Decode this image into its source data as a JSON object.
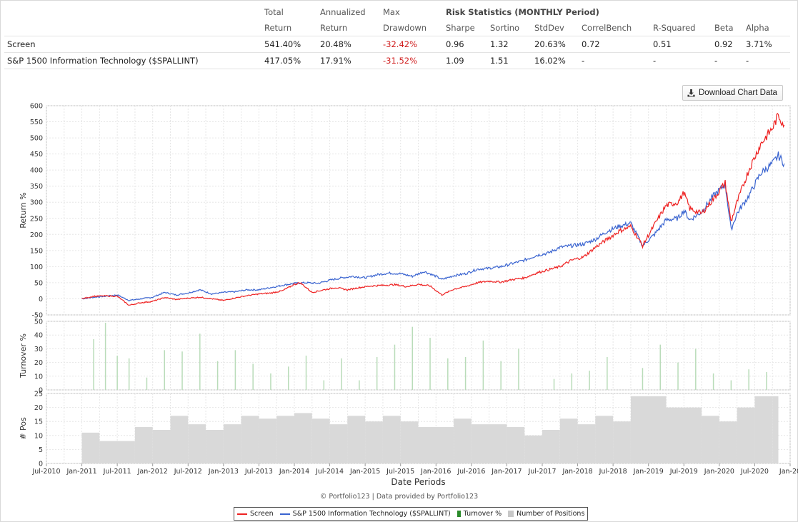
{
  "stats_table": {
    "header_row1": [
      "",
      "Total",
      "Annualized",
      "Max",
      "Risk Statistics (MONTHLY Period)"
    ],
    "header_row2": [
      "",
      "Return",
      "Return",
      "Drawdown",
      "Sharpe",
      "Sortino",
      "StdDev",
      "CorrelBench",
      "R-Squared",
      "Beta",
      "Alpha"
    ],
    "rows": [
      {
        "name": "Screen",
        "total": "541.40%",
        "annualized": "20.48%",
        "drawdown": "-32.42%",
        "sharpe": "0.96",
        "sortino": "1.32",
        "stddev": "20.63%",
        "correl": "0.72",
        "rsq": "0.51",
        "beta": "0.92",
        "alpha": "3.71%"
      },
      {
        "name": "S&P 1500 Information Technology ($SPALLINT)",
        "total": "417.05%",
        "annualized": "17.91%",
        "drawdown": "-31.52%",
        "sharpe": "1.09",
        "sortino": "1.51",
        "stddev": "16.02%",
        "correl": "-",
        "rsq": "-",
        "beta": "-",
        "alpha": "-"
      }
    ]
  },
  "download_button": {
    "label": "Download Chart Data",
    "icon": "download-icon"
  },
  "footer": "© Portfolio123 | Data provided by Portfolio123",
  "colors": {
    "screen": "#ee2222",
    "benchmark": "#3a64d0",
    "turnover": "#5aaa5a",
    "positions": "#d9d9d9"
  },
  "chart_data": [
    {
      "type": "line",
      "ylabel": "Return %",
      "ylim": [
        -50,
        600
      ],
      "yticks": [
        -50,
        0,
        50,
        100,
        150,
        200,
        250,
        300,
        350,
        400,
        450,
        500,
        550,
        600
      ],
      "x_start": "2010-07",
      "x_end": "2021-01",
      "grid": true,
      "series": [
        {
          "name": "Screen",
          "color": "#ee2222",
          "points": [
            [
              "2011-01",
              0
            ],
            [
              "2011-03",
              8
            ],
            [
              "2011-05",
              9
            ],
            [
              "2011-07",
              8
            ],
            [
              "2011-09",
              -20
            ],
            [
              "2011-11",
              -12
            ],
            [
              "2012-01",
              -8
            ],
            [
              "2012-03",
              4
            ],
            [
              "2012-05",
              -2
            ],
            [
              "2012-07",
              2
            ],
            [
              "2012-09",
              5
            ],
            [
              "2012-11",
              0
            ],
            [
              "2013-01",
              -5
            ],
            [
              "2013-03",
              3
            ],
            [
              "2013-05",
              10
            ],
            [
              "2013-07",
              15
            ],
            [
              "2013-09",
              18
            ],
            [
              "2013-11",
              25
            ],
            [
              "2014-01",
              45
            ],
            [
              "2014-02",
              50
            ],
            [
              "2014-04",
              20
            ],
            [
              "2014-06",
              28
            ],
            [
              "2014-08",
              35
            ],
            [
              "2014-10",
              28
            ],
            [
              "2014-12",
              35
            ],
            [
              "2015-02",
              40
            ],
            [
              "2015-04",
              42
            ],
            [
              "2015-06",
              44
            ],
            [
              "2015-08",
              38
            ],
            [
              "2015-10",
              45
            ],
            [
              "2015-12",
              40
            ],
            [
              "2016-02",
              12
            ],
            [
              "2016-04",
              30
            ],
            [
              "2016-06",
              38
            ],
            [
              "2016-08",
              50
            ],
            [
              "2016-10",
              55
            ],
            [
              "2016-12",
              52
            ],
            [
              "2017-02",
              60
            ],
            [
              "2017-04",
              65
            ],
            [
              "2017-06",
              80
            ],
            [
              "2017-08",
              90
            ],
            [
              "2017-10",
              100
            ],
            [
              "2017-12",
              120
            ],
            [
              "2018-02",
              130
            ],
            [
              "2018-04",
              160
            ],
            [
              "2018-06",
              185
            ],
            [
              "2018-08",
              210
            ],
            [
              "2018-10",
              225
            ],
            [
              "2018-12",
              165
            ],
            [
              "2019-02",
              230
            ],
            [
              "2019-04",
              290
            ],
            [
              "2019-06",
              300
            ],
            [
              "2019-07",
              330
            ],
            [
              "2019-08",
              280
            ],
            [
              "2019-10",
              265
            ],
            [
              "2019-12",
              310
            ],
            [
              "2020-02",
              360
            ],
            [
              "2020-03",
              240
            ],
            [
              "2020-04",
              300
            ],
            [
              "2020-06",
              400
            ],
            [
              "2020-08",
              480
            ],
            [
              "2020-10",
              530
            ],
            [
              "2020-11",
              570
            ],
            [
              "2020-12",
              540
            ]
          ]
        },
        {
          "name": "S&P 1500 Information Technology ($SPALLINT)",
          "color": "#3a64d0",
          "points": [
            [
              "2011-01",
              0
            ],
            [
              "2011-03",
              5
            ],
            [
              "2011-05",
              8
            ],
            [
              "2011-07",
              12
            ],
            [
              "2011-09",
              -5
            ],
            [
              "2011-11",
              0
            ],
            [
              "2012-01",
              5
            ],
            [
              "2012-03",
              20
            ],
            [
              "2012-05",
              12
            ],
            [
              "2012-07",
              18
            ],
            [
              "2012-09",
              28
            ],
            [
              "2012-11",
              15
            ],
            [
              "2013-01",
              20
            ],
            [
              "2013-03",
              22
            ],
            [
              "2013-05",
              28
            ],
            [
              "2013-07",
              28
            ],
            [
              "2013-09",
              35
            ],
            [
              "2013-11",
              42
            ],
            [
              "2014-01",
              48
            ],
            [
              "2014-03",
              50
            ],
            [
              "2014-05",
              48
            ],
            [
              "2014-07",
              58
            ],
            [
              "2014-09",
              65
            ],
            [
              "2014-11",
              70
            ],
            [
              "2015-01",
              65
            ],
            [
              "2015-03",
              75
            ],
            [
              "2015-05",
              80
            ],
            [
              "2015-07",
              78
            ],
            [
              "2015-09",
              70
            ],
            [
              "2015-11",
              85
            ],
            [
              "2016-01",
              70
            ],
            [
              "2016-02",
              60
            ],
            [
              "2016-04",
              72
            ],
            [
              "2016-06",
              78
            ],
            [
              "2016-08",
              92
            ],
            [
              "2016-10",
              95
            ],
            [
              "2016-12",
              100
            ],
            [
              "2017-02",
              110
            ],
            [
              "2017-04",
              120
            ],
            [
              "2017-06",
              135
            ],
            [
              "2017-08",
              142
            ],
            [
              "2017-10",
              160
            ],
            [
              "2017-12",
              165
            ],
            [
              "2018-02",
              170
            ],
            [
              "2018-04",
              185
            ],
            [
              "2018-06",
              210
            ],
            [
              "2018-08",
              225
            ],
            [
              "2018-10",
              235
            ],
            [
              "2018-12",
              165
            ],
            [
              "2019-02",
              200
            ],
            [
              "2019-04",
              245
            ],
            [
              "2019-06",
              250
            ],
            [
              "2019-07",
              275
            ],
            [
              "2019-08",
              245
            ],
            [
              "2019-10",
              270
            ],
            [
              "2019-12",
              320
            ],
            [
              "2020-02",
              355
            ],
            [
              "2020-03",
              215
            ],
            [
              "2020-04",
              265
            ],
            [
              "2020-06",
              320
            ],
            [
              "2020-08",
              390
            ],
            [
              "2020-10",
              420
            ],
            [
              "2020-11",
              445
            ],
            [
              "2020-12",
              420
            ]
          ]
        }
      ]
    },
    {
      "type": "bar",
      "ylabel": "Turnover %",
      "ylim": [
        0,
        50
      ],
      "yticks": [
        0,
        10,
        20,
        30,
        40,
        50
      ],
      "series": [
        {
          "name": "Turnover %",
          "color": "#5aaa5a"
        }
      ],
      "points": [
        [
          "2011-03",
          37
        ],
        [
          "2011-05",
          49
        ],
        [
          "2011-07",
          25
        ],
        [
          "2011-09",
          23
        ],
        [
          "2011-12",
          9
        ],
        [
          "2012-03",
          29
        ],
        [
          "2012-06",
          28
        ],
        [
          "2012-09",
          41
        ],
        [
          "2012-12",
          21
        ],
        [
          "2013-03",
          29
        ],
        [
          "2013-06",
          19
        ],
        [
          "2013-09",
          12
        ],
        [
          "2013-12",
          17
        ],
        [
          "2014-03",
          25
        ],
        [
          "2014-06",
          7
        ],
        [
          "2014-09",
          23
        ],
        [
          "2014-12",
          7
        ],
        [
          "2015-03",
          24
        ],
        [
          "2015-06",
          33
        ],
        [
          "2015-09",
          46
        ],
        [
          "2015-12",
          38
        ],
        [
          "2016-03",
          23
        ],
        [
          "2016-06",
          24
        ],
        [
          "2016-09",
          36
        ],
        [
          "2016-12",
          21
        ],
        [
          "2017-03",
          30
        ],
        [
          "2017-09",
          8
        ],
        [
          "2017-12",
          12
        ],
        [
          "2018-03",
          14
        ],
        [
          "2018-06",
          24
        ],
        [
          "2018-12",
          16
        ],
        [
          "2019-03",
          33
        ],
        [
          "2019-06",
          20
        ],
        [
          "2019-09",
          30
        ],
        [
          "2019-12",
          12
        ],
        [
          "2020-03",
          7
        ],
        [
          "2020-06",
          15
        ],
        [
          "2020-09",
          13
        ]
      ]
    },
    {
      "type": "bar",
      "ylabel": "# Pos",
      "ylim": [
        0,
        25
      ],
      "yticks": [
        0,
        5,
        10,
        15,
        20,
        25
      ],
      "series": [
        {
          "name": "Number of Positions",
          "color": "#d9d9d9"
        }
      ],
      "x_start": "2010-07",
      "x_end": "2021-01",
      "xticks": [
        "Jul-2010",
        "Jan-2011",
        "Jul-2011",
        "Jan-2012",
        "Jul-2012",
        "Jan-2013",
        "Jul-2013",
        "Jan-2014",
        "Jul-2014",
        "Jan-2015",
        "Jul-2015",
        "Jan-2016",
        "Jul-2016",
        "Jan-2017",
        "Jul-2017",
        "Jan-2018",
        "Jul-2018",
        "Jan-2019",
        "Jul-2019",
        "Jan-2020",
        "Jul-2020",
        "Jan-20"
      ],
      "xlabel": "Date Periods",
      "steps": [
        [
          "2011-01",
          11
        ],
        [
          "2011-04",
          8
        ],
        [
          "2011-10",
          13
        ],
        [
          "2012-01",
          12
        ],
        [
          "2012-04",
          17
        ],
        [
          "2012-07",
          14
        ],
        [
          "2012-10",
          12
        ],
        [
          "2013-01",
          14
        ],
        [
          "2013-04",
          17
        ],
        [
          "2013-07",
          16
        ],
        [
          "2013-10",
          17
        ],
        [
          "2014-01",
          18
        ],
        [
          "2014-04",
          16
        ],
        [
          "2014-07",
          14
        ],
        [
          "2014-10",
          17
        ],
        [
          "2015-01",
          15
        ],
        [
          "2015-04",
          17
        ],
        [
          "2015-07",
          15
        ],
        [
          "2015-10",
          13
        ],
        [
          "2016-04",
          16
        ],
        [
          "2016-07",
          14
        ],
        [
          "2017-01",
          13
        ],
        [
          "2017-04",
          10
        ],
        [
          "2017-07",
          12
        ],
        [
          "2017-10",
          16
        ],
        [
          "2018-01",
          14
        ],
        [
          "2018-04",
          17
        ],
        [
          "2018-07",
          15
        ],
        [
          "2018-10",
          24
        ],
        [
          "2019-04",
          20
        ],
        [
          "2019-10",
          17
        ],
        [
          "2020-01",
          15
        ],
        [
          "2020-04",
          20
        ],
        [
          "2020-07",
          24
        ],
        [
          "2020-10",
          24
        ]
      ],
      "end": "2020-11"
    }
  ],
  "legend": [
    {
      "label": "Screen",
      "kind": "line",
      "color": "#ee2222"
    },
    {
      "label": "S&P 1500 Information Technology ($SPALLINT)",
      "kind": "line",
      "color": "#3a64d0"
    },
    {
      "label": "Turnover %",
      "kind": "bar",
      "color": "#2a8a2a"
    },
    {
      "label": "Number of Positions",
      "kind": "bar",
      "color": "#c8c8c8"
    }
  ]
}
